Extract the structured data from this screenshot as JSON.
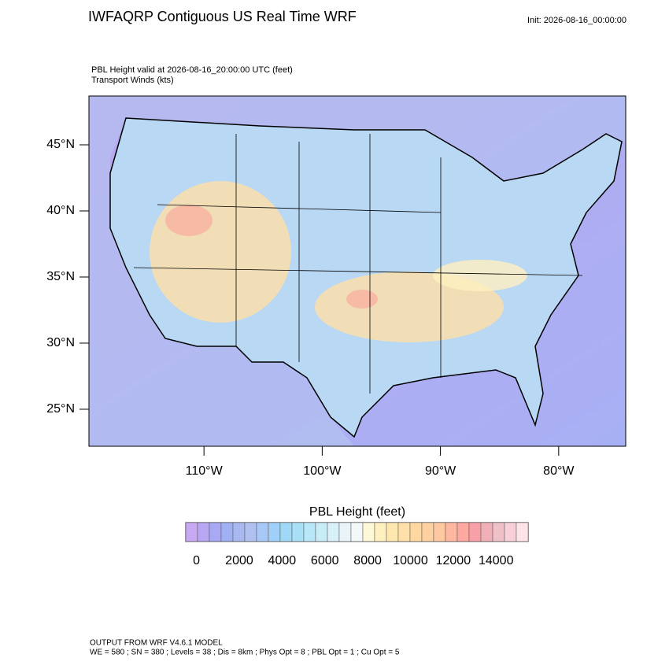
{
  "title": "IWFAQRP Contiguous US Real Time WRF",
  "init": "Init: 2026-08-16_00:00:00",
  "subtitle": [
    "PBL Height valid at 2026-08-16_20:00:00 UTC   (feet)",
    "Transport Winds   (kts)"
  ],
  "map": {
    "latlim": [
      22.2,
      48.69
    ],
    "latticks": [
      {
        "value": 45,
        "label": "45°N"
      },
      {
        "value": 40,
        "label": "40°N"
      },
      {
        "value": 35,
        "label": "35°N"
      },
      {
        "value": 30,
        "label": "30°N"
      },
      {
        "value": 25,
        "label": "25°N"
      }
    ],
    "lonlim": [
      -119.73,
      -74.33
    ],
    "lonticks": [
      {
        "value": -110,
        "label": "110°W"
      },
      {
        "value": -100,
        "label": "100°W"
      },
      {
        "value": -90,
        "label": "90°W"
      },
      {
        "value": -80,
        "label": "80°W"
      }
    ]
  },
  "colorbar": {
    "title": "PBL Height  (feet)",
    "lim": [
      -500,
      15500
    ],
    "ticks": [
      0,
      2000,
      4000,
      6000,
      8000,
      10000,
      12000,
      14000
    ],
    "colors": [
      "#c8a8f0",
      "#b8a8f4",
      "#a8a8f4",
      "#a0b0f4",
      "#a8b8f0",
      "#b0c0f0",
      "#a8c8f8",
      "#a0d0f8",
      "#a0d8f8",
      "#a8e0f8",
      "#b8e8f8",
      "#c8ecf8",
      "#d8f0f8",
      "#e8f4f8",
      "#f4f8f8",
      "#fff8d8",
      "#fff0c0",
      "#ffe8b0",
      "#ffe0a8",
      "#ffd8a0",
      "#ffd0a0",
      "#ffc8a0",
      "#ffb8a0",
      "#ffa8a0",
      "#f8a0a8",
      "#f0b0b8",
      "#f0c0c8",
      "#f8d0d8",
      "#fce4e8"
    ]
  },
  "footer": [
    "OUTPUT FROM WRF V4.6.1 MODEL",
    "WE = 580 ; SN = 380 ; Levels = 38 ; Dis = 8km ; Phys Opt = 8 ; PBL Opt = 1 ; Cu Opt = 5"
  ]
}
